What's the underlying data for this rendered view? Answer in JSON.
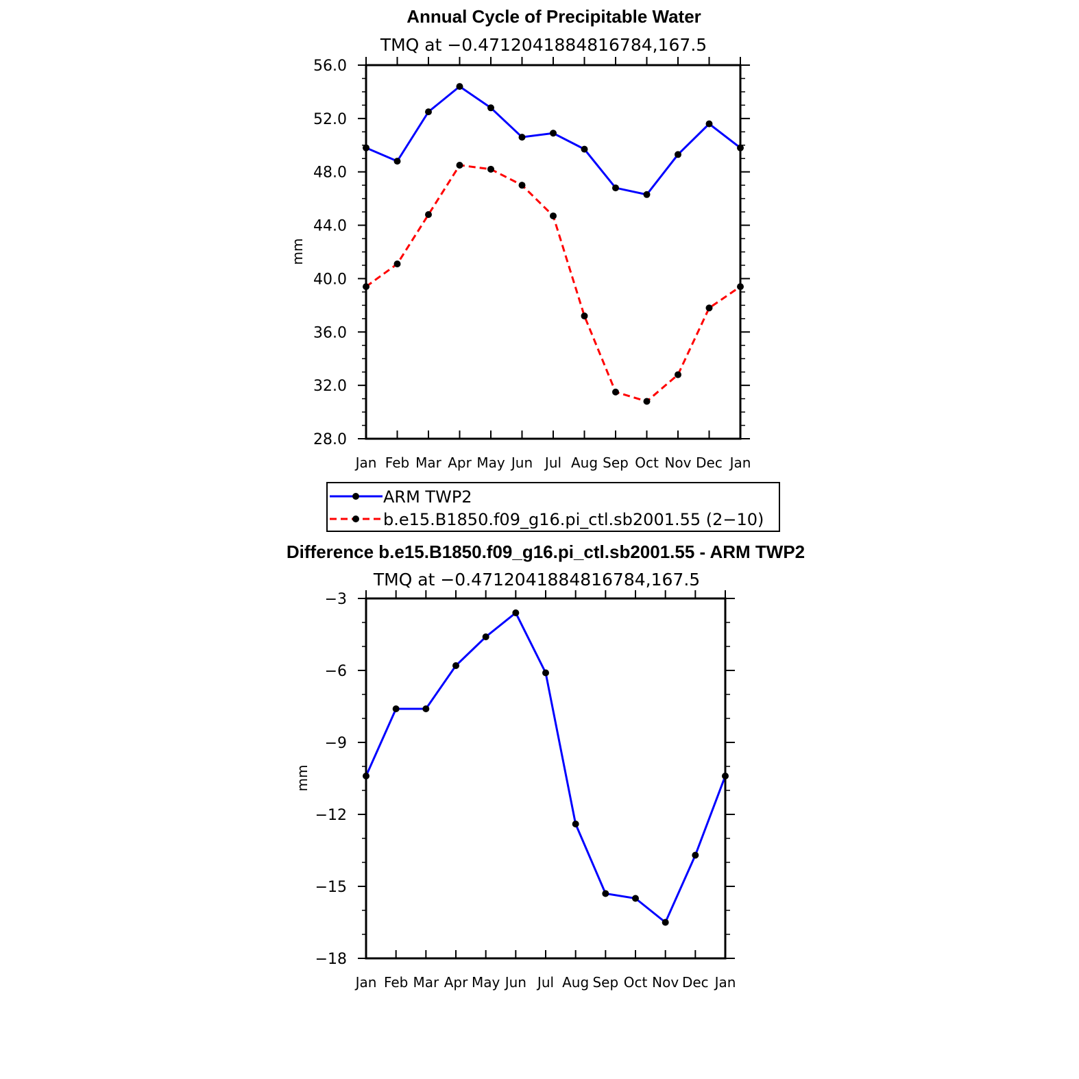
{
  "colors": {
    "series1": "#0000ff",
    "series2": "#ff0000",
    "marker": "#000000",
    "axis": "#000000"
  },
  "chart_data": [
    {
      "type": "line",
      "title": "Annual Cycle of Precipitable Water",
      "subtitle": "TMQ at −0.4712041884816784,167.5",
      "ylabel": "mm",
      "xlabel": "",
      "ylim": [
        28.0,
        56.0
      ],
      "yticks": [
        "28.0",
        "32.0",
        "36.0",
        "40.0",
        "44.0",
        "48.0",
        "52.0",
        "56.0"
      ],
      "categories": [
        "Jan",
        "Feb",
        "Mar",
        "Apr",
        "May",
        "Jun",
        "Jul",
        "Aug",
        "Sep",
        "Oct",
        "Nov",
        "Dec",
        "Jan"
      ],
      "series": [
        {
          "name": "ARM TWP2",
          "style": "solid",
          "values": [
            49.8,
            48.8,
            52.5,
            54.4,
            52.8,
            50.6,
            50.9,
            49.7,
            46.8,
            46.3,
            49.3,
            51.6,
            49.8
          ]
        },
        {
          "name": "b.e15.B1850.f09_g16.pi_ctl.sb2001.55 (2−10)",
          "style": "dashed",
          "values": [
            39.4,
            41.1,
            44.8,
            48.5,
            48.2,
            47.0,
            44.7,
            37.2,
            31.5,
            30.8,
            32.8,
            37.8,
            39.4
          ]
        }
      ],
      "legend": [
        "ARM TWP2",
        "b.e15.B1850.f09_g16.pi_ctl.sb2001.55 (2−10)"
      ],
      "legend_position": "below"
    },
    {
      "type": "line",
      "title": "Difference b.e15.B1850.f09_g16.pi_ctl.sb2001.55 - ARM TWP2",
      "subtitle": "TMQ at −0.4712041884816784,167.5",
      "ylabel": "mm",
      "xlabel": "",
      "ylim": [
        -18,
        -3
      ],
      "yticks": [
        "−18",
        "−15",
        "−12",
        "−9",
        "−6",
        "−3"
      ],
      "categories": [
        "Jan",
        "Feb",
        "Mar",
        "Apr",
        "May",
        "Jun",
        "Jul",
        "Aug",
        "Sep",
        "Oct",
        "Nov",
        "Dec",
        "Jan"
      ],
      "series": [
        {
          "name": "Difference",
          "style": "solid",
          "values": [
            -10.4,
            -7.6,
            -7.6,
            -5.8,
            -4.6,
            -3.6,
            -6.1,
            -12.4,
            -15.3,
            -15.5,
            -16.5,
            -13.7,
            -10.4
          ]
        }
      ]
    }
  ]
}
